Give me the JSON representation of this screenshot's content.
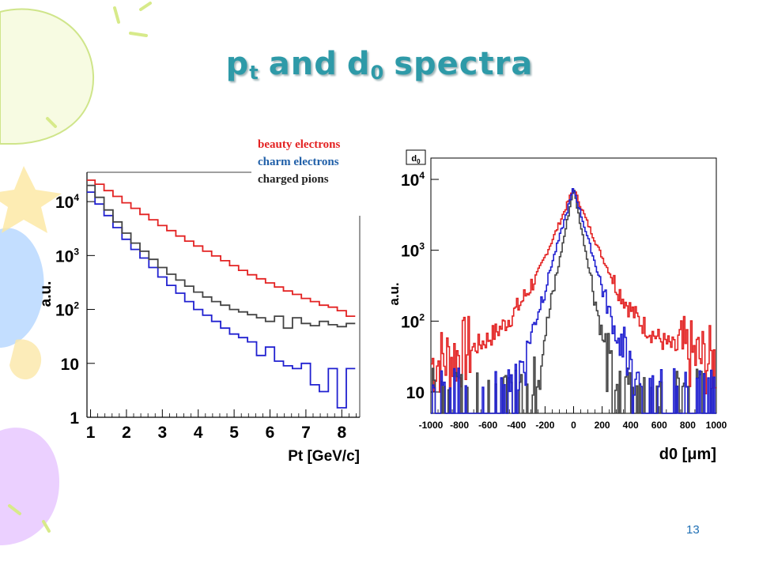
{
  "slide": {
    "title_p": "p",
    "title_t": "t",
    "title_and": "and",
    "title_d": "d",
    "title_0": "0",
    "title_spectra": "spectra",
    "page_number": "13"
  },
  "legend": {
    "beauty": "beauty electrons",
    "charm": "charm electrons",
    "pions": "charged pions"
  },
  "colors": {
    "beauty": "#e32222",
    "charm": "#2020d0",
    "pions": "#444444",
    "title": "#2e9aa8",
    "legend_charm": "#1f5fa8"
  },
  "chart_data": [
    {
      "type": "line",
      "style": "step histogram",
      "xlabel": "Pt [GeV/c]",
      "ylabel": "a.u.",
      "x_ticks": [
        "1",
        "2",
        "3",
        "4",
        "5",
        "6",
        "7",
        "8"
      ],
      "y_ticks": [
        "1",
        "10",
        "10^2",
        "10^3",
        "10^4"
      ],
      "xlim": [
        0.9,
        8.5
      ],
      "ylim": [
        1,
        35000
      ],
      "y_scale": "log",
      "x": [
        1.0,
        1.25,
        1.5,
        1.75,
        2.0,
        2.25,
        2.5,
        2.75,
        3.0,
        3.25,
        3.5,
        3.75,
        4.0,
        4.25,
        4.5,
        4.75,
        5.0,
        5.25,
        5.5,
        5.75,
        6.0,
        6.25,
        6.5,
        6.75,
        7.0,
        7.25,
        7.5,
        7.75,
        8.0,
        8.25
      ],
      "series": [
        {
          "name": "beauty electrons",
          "values": [
            25000,
            21000,
            16000,
            12500,
            9500,
            7500,
            5800,
            4600,
            3600,
            2900,
            2300,
            1850,
            1500,
            1200,
            980,
            800,
            650,
            530,
            440,
            370,
            310,
            260,
            220,
            190,
            160,
            140,
            120,
            110,
            95,
            75
          ]
        },
        {
          "name": "charm electrons",
          "values": [
            15000,
            9000,
            5500,
            3300,
            2000,
            1300,
            900,
            600,
            400,
            280,
            200,
            140,
            100,
            78,
            60,
            45,
            35,
            30,
            25,
            14,
            20,
            11,
            9,
            8,
            10,
            4,
            3,
            8,
            1.5,
            8
          ]
        },
        {
          "name": "charged pions",
          "values": [
            20000,
            12000,
            7000,
            4200,
            2600,
            1700,
            1200,
            850,
            600,
            450,
            350,
            270,
            210,
            170,
            140,
            120,
            100,
            90,
            80,
            70,
            60,
            75,
            45,
            70,
            55,
            50,
            60,
            52,
            48,
            55
          ]
        }
      ]
    },
    {
      "type": "line",
      "style": "step histogram",
      "stat_box": "d0",
      "xlabel": "d0 [μm]",
      "ylabel": "a.u.",
      "x_ticks": [
        "-1000",
        "-800",
        "-600",
        "-400",
        "-200",
        "0",
        "200",
        "400",
        "600",
        "800",
        "1000"
      ],
      "y_ticks": [
        "10",
        "10^2",
        "10^3",
        "10^4"
      ],
      "xlim": [
        -1000,
        1000
      ],
      "ylim": [
        5,
        20000
      ],
      "y_scale": "log",
      "series": [
        {
          "name": "beauty electrons",
          "shape": "wide peak",
          "peak_x": 0,
          "peak_y": 7500,
          "tail_y": 18
        },
        {
          "name": "charm electrons",
          "shape": "medium peak",
          "peak_x": 0,
          "peak_y": 7500,
          "tail_y": 5
        },
        {
          "name": "charged pions",
          "shape": "narrow peak",
          "peak_x": 0,
          "peak_y": 7500,
          "tail_y": 5
        }
      ]
    }
  ]
}
